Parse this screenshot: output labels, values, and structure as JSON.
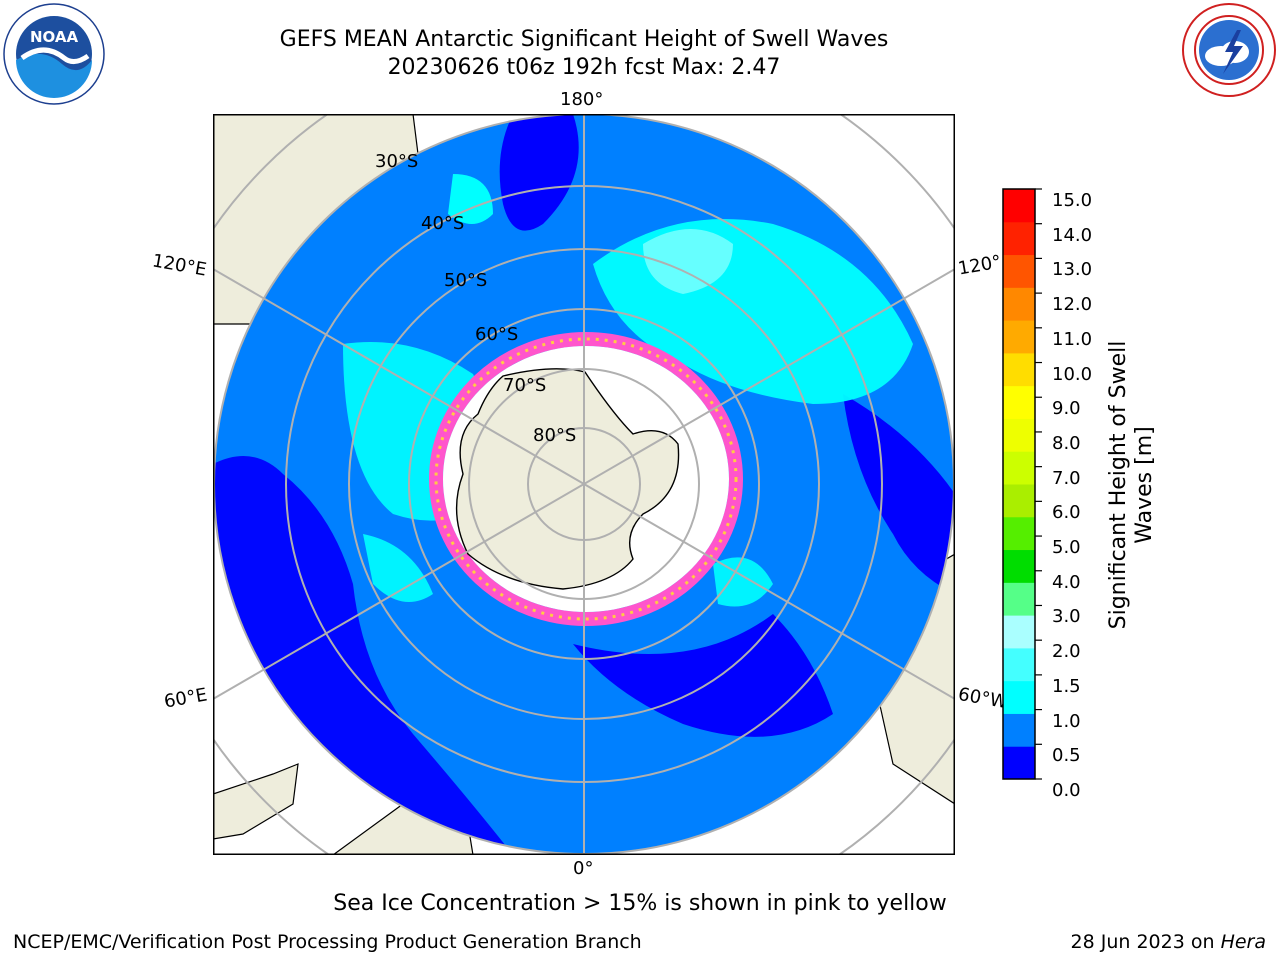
{
  "title": {
    "line1": "GEFS MEAN Antarctic Significant Height of Swell Waves",
    "line2": "20230626 t06z 192h fcst   Max: 2.47"
  },
  "logos": {
    "left": {
      "icon": "noaa-logo",
      "text": "NOAA",
      "ring_text": "NATIONAL OCEANIC AND ATMOSPHERIC ADMINISTRATION · U.S. DEPARTMENT OF COMMERCE"
    },
    "right": {
      "icon": "nws-logo",
      "ring_text": "NATIONAL WEATHER SERVICE"
    }
  },
  "map": {
    "projection": "south-polar-stereographic",
    "meridian_labels": [
      "180°",
      "120°E",
      "120°",
      "60°E",
      "60°W",
      "0°"
    ],
    "parallel_labels": [
      "30°S",
      "40°S",
      "50°S",
      "60°S",
      "70°S",
      "80°S"
    ],
    "colors": {
      "land": "#eeeddc",
      "ice_shelf": "#ffffff",
      "grid": "#b0b0b0",
      "sea_ice_edge": [
        "#ff66cc",
        "#ff33cc",
        "#ffcc00"
      ]
    }
  },
  "colorbar": {
    "title_line1": "Significant Height of Swell",
    "title_line2": "Waves [m]",
    "ticks": [
      "15.0",
      "14.0",
      "13.0",
      "12.0",
      "11.0",
      "10.0",
      "9.0",
      "8.0",
      "7.0",
      "6.0",
      "5.0",
      "4.0",
      "3.0",
      "2.0",
      "1.5",
      "1.0",
      "0.5",
      "0.0"
    ],
    "segment_colors": [
      "#0000ff",
      "#0080ff",
      "#00ffff",
      "#44ffff",
      "#aaffff",
      "#55ff88",
      "#00dd00",
      "#55ee00",
      "#aaee00",
      "#ccff00",
      "#eeff00",
      "#ffff00",
      "#ffdd00",
      "#ffaa00",
      "#ff8800",
      "#ff5500",
      "#ff2200",
      "#ff0000"
    ]
  },
  "ice_note": "Sea Ice Concentration > 15% is shown in pink to yellow",
  "footer": {
    "left": "NCEP/EMC/Verification Post Processing Product Generation Branch",
    "right_date": "28 Jun 2023 on ",
    "right_host": "Hera"
  }
}
